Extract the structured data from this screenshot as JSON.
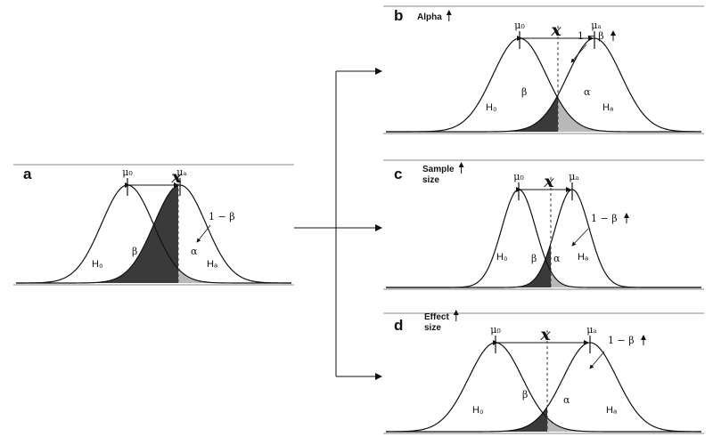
{
  "labels": {
    "mu0": "μ₀",
    "mua": "μₐ",
    "xcrit": "x",
    "power": "1 − β",
    "beta": "β",
    "alpha": "α",
    "h0": "H₀",
    "ha": "Hₐ"
  },
  "panels": [
    {
      "letter": "a",
      "title": [],
      "up_arrow": false
    },
    {
      "letter": "b",
      "title": [
        "Alpha"
      ],
      "up_arrow": true
    },
    {
      "letter": "c",
      "title": [
        "Sample",
        "size"
      ],
      "up_arrow": true
    },
    {
      "letter": "d",
      "title": [
        "Effect",
        "size"
      ],
      "up_arrow": true
    }
  ],
  "colors": {
    "beta_fill": "#3a3a3a",
    "alpha_fill": "#b8b8b8",
    "curve": "#111111",
    "border": "#888888"
  }
}
